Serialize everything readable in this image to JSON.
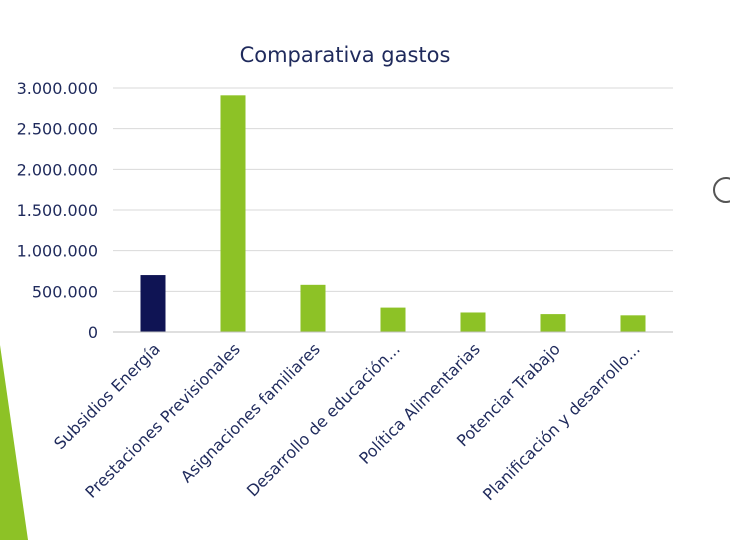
{
  "chart_data": {
    "type": "bar",
    "title": "Comparativa gastos",
    "categories": [
      "Subsidios Energía",
      "Prestaciones Previsionales",
      "Asignaciones familiares",
      "Desarrollo de educación...",
      "Política Alimentarias",
      "Potenciar Trabajo",
      "Planificación y desarrollo..."
    ],
    "values": [
      700000,
      2910000,
      580000,
      300000,
      240000,
      220000,
      205000
    ],
    "bar_colors": [
      "#0f1454",
      "#8dc226",
      "#8dc226",
      "#8dc226",
      "#8dc226",
      "#8dc226",
      "#8dc226"
    ],
    "ylim": [
      0,
      3000000
    ],
    "yticks": [
      0,
      500000,
      1000000,
      1500000,
      2000000,
      2500000,
      3000000
    ],
    "ytick_labels": [
      "0",
      "500.000",
      "1.000.000",
      "1.500.000",
      "2.000.000",
      "2.500.000",
      "3.000.000"
    ],
    "grid": true,
    "xlabel": "",
    "ylabel": ""
  },
  "decor": {
    "accent_color": "#8dc226",
    "edge_circle_color": "#555555"
  }
}
